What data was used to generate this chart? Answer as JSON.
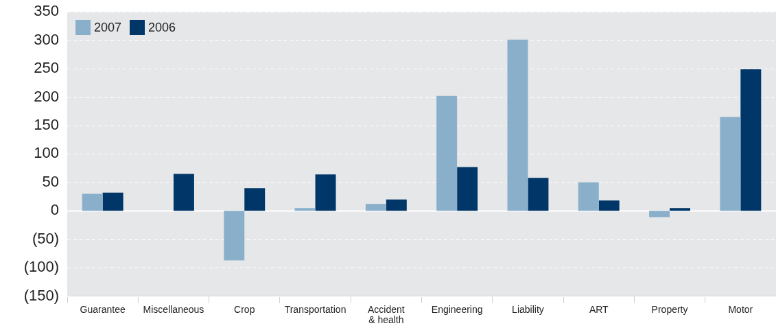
{
  "chart_data": {
    "type": "bar",
    "categories": [
      "Guarantee",
      "Miscellaneous",
      "Crop",
      "Transportation",
      "Accident\n& health",
      "Engineering",
      "Liability",
      "ART",
      "Property",
      "Motor"
    ],
    "series": [
      {
        "name": "2007",
        "color": "#8aafcb",
        "values": [
          30,
          null,
          -87,
          5,
          12,
          202,
          301,
          50,
          -11,
          165
        ]
      },
      {
        "name": "2006",
        "color": "#003768",
        "values": [
          32,
          65,
          40,
          64,
          20,
          77,
          58,
          18,
          5,
          249
        ]
      }
    ],
    "ylim": [
      -150,
      350
    ],
    "yticks": [
      {
        "value": -150,
        "label": "(150)"
      },
      {
        "value": -100,
        "label": "(100)"
      },
      {
        "value": -50,
        "label": "(50)"
      },
      0,
      50,
      100,
      150,
      200,
      250,
      300,
      350
    ],
    "grid": "y",
    "legend": "top left"
  }
}
